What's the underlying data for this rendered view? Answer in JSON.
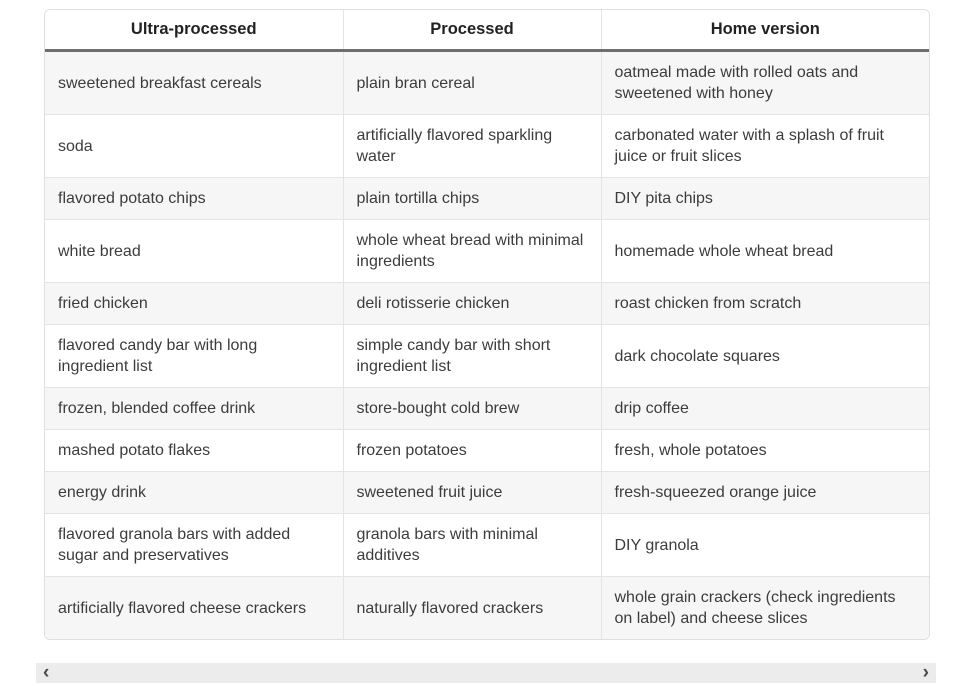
{
  "table": {
    "columns": [
      "Ultra-processed",
      "Processed",
      "Home version"
    ],
    "rows": [
      [
        "sweetened breakfast cereals",
        "plain bran cereal",
        "oatmeal made with rolled oats and sweetened with honey"
      ],
      [
        "soda",
        "artificially flavored sparkling water",
        "carbonated water with a splash of fruit juice or fruit slices"
      ],
      [
        "flavored potato chips",
        "plain tortilla chips",
        "DIY pita chips"
      ],
      [
        "white bread",
        "whole wheat bread with minimal ingredients",
        "homemade whole wheat bread"
      ],
      [
        "fried chicken",
        "deli rotisserie chicken",
        "roast chicken from scratch"
      ],
      [
        "flavored candy bar with long ingredient list",
        "simple candy bar with short ingredient list",
        "dark chocolate squares"
      ],
      [
        "frozen, blended coffee drink",
        "store-bought cold brew",
        "drip coffee"
      ],
      [
        "mashed potato flakes",
        "frozen potatoes",
        "fresh, whole potatoes"
      ],
      [
        "energy drink",
        "sweetened fruit juice",
        "fresh-squeezed orange juice"
      ],
      [
        "flavored granola bars with added sugar and preservatives",
        "granola bars with minimal additives",
        "DIY granola"
      ],
      [
        "artificially flavored cheese crackers",
        "naturally flavored crackers",
        "whole grain crackers (check ingredients on label) and cheese slices"
      ]
    ]
  },
  "scrollbar": {
    "left_arrow": "‹",
    "right_arrow": "›"
  },
  "colors": {
    "row_stripe": "#f6f6f6",
    "header_underline": "#6e6e6e",
    "table_border": "#dfdfdf",
    "cell_text": "#3c3c3c",
    "header_text": "#222222",
    "scrollbar_track": "#ececec"
  }
}
